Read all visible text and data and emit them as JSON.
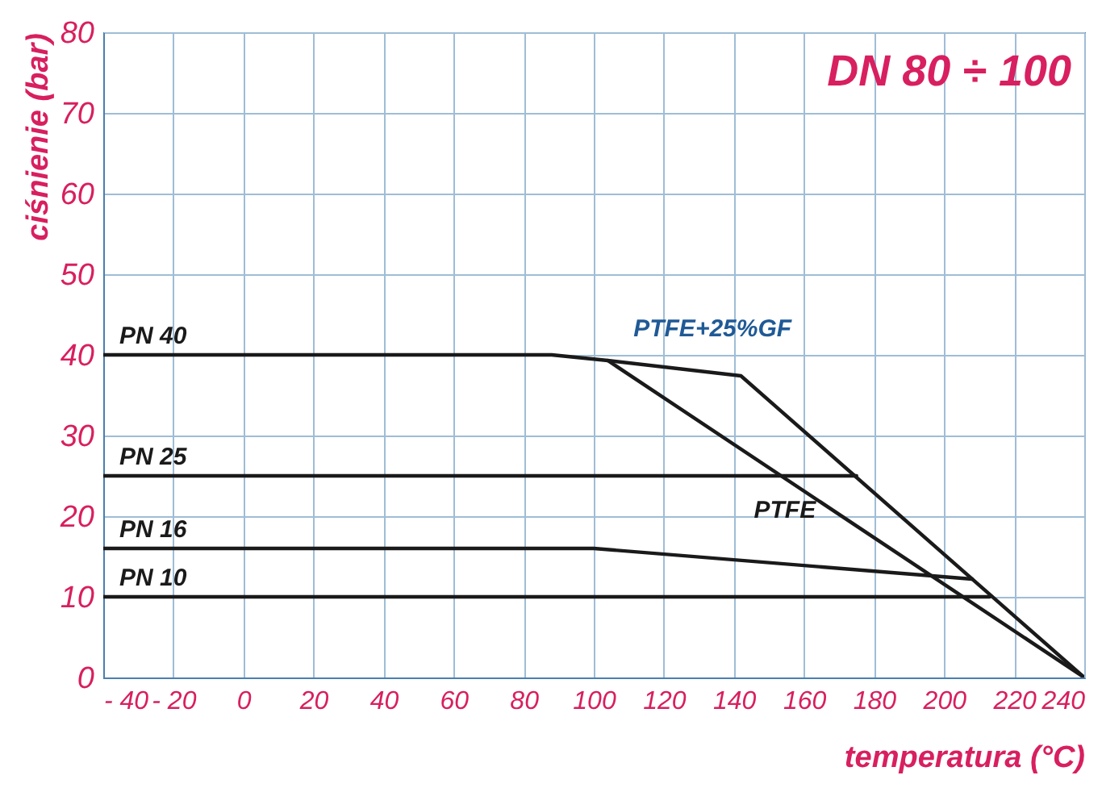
{
  "chart_data": {
    "type": "line",
    "title": "DN 80 ÷ 100",
    "xlabel": "temperatura (°C)",
    "ylabel": "ciśnienie (bar)",
    "series": [
      {
        "name": "PN 40",
        "color": "#1a1a1a",
        "x": [
          -40,
          88,
          104,
          142,
          240
        ],
        "values": [
          40,
          40,
          39.3,
          37.4,
          0
        ]
      },
      {
        "name": "PTFE",
        "color": "#1a1a1a",
        "x": [
          104,
          240
        ],
        "values": [
          39.3,
          0
        ]
      },
      {
        "name": "PN 25",
        "color": "#1a1a1a",
        "x": [
          -40,
          175
        ],
        "values": [
          25,
          25
        ]
      },
      {
        "name": "PN 16",
        "color": "#1a1a1a",
        "x": [
          -40,
          100,
          208
        ],
        "values": [
          16,
          16,
          12.2
        ]
      },
      {
        "name": "PN 10",
        "color": "#1a1a1a",
        "x": [
          -40,
          213
        ],
        "values": [
          10,
          10
        ]
      }
    ],
    "xlim": [
      -40,
      240
    ],
    "xticks": [
      -40,
      -20,
      0,
      20,
      40,
      60,
      80,
      100,
      120,
      140,
      160,
      180,
      200,
      220,
      240
    ],
    "ylim": [
      0,
      80
    ],
    "yticks": [
      0,
      10,
      20,
      30,
      40,
      50,
      60,
      70,
      80
    ],
    "annotations": [
      {
        "text": "PTFE+25%GF",
        "x": 150,
        "y": 34.3
      }
    ],
    "grid": true,
    "legend": false,
    "marker": "none",
    "line_style": "solid"
  }
}
